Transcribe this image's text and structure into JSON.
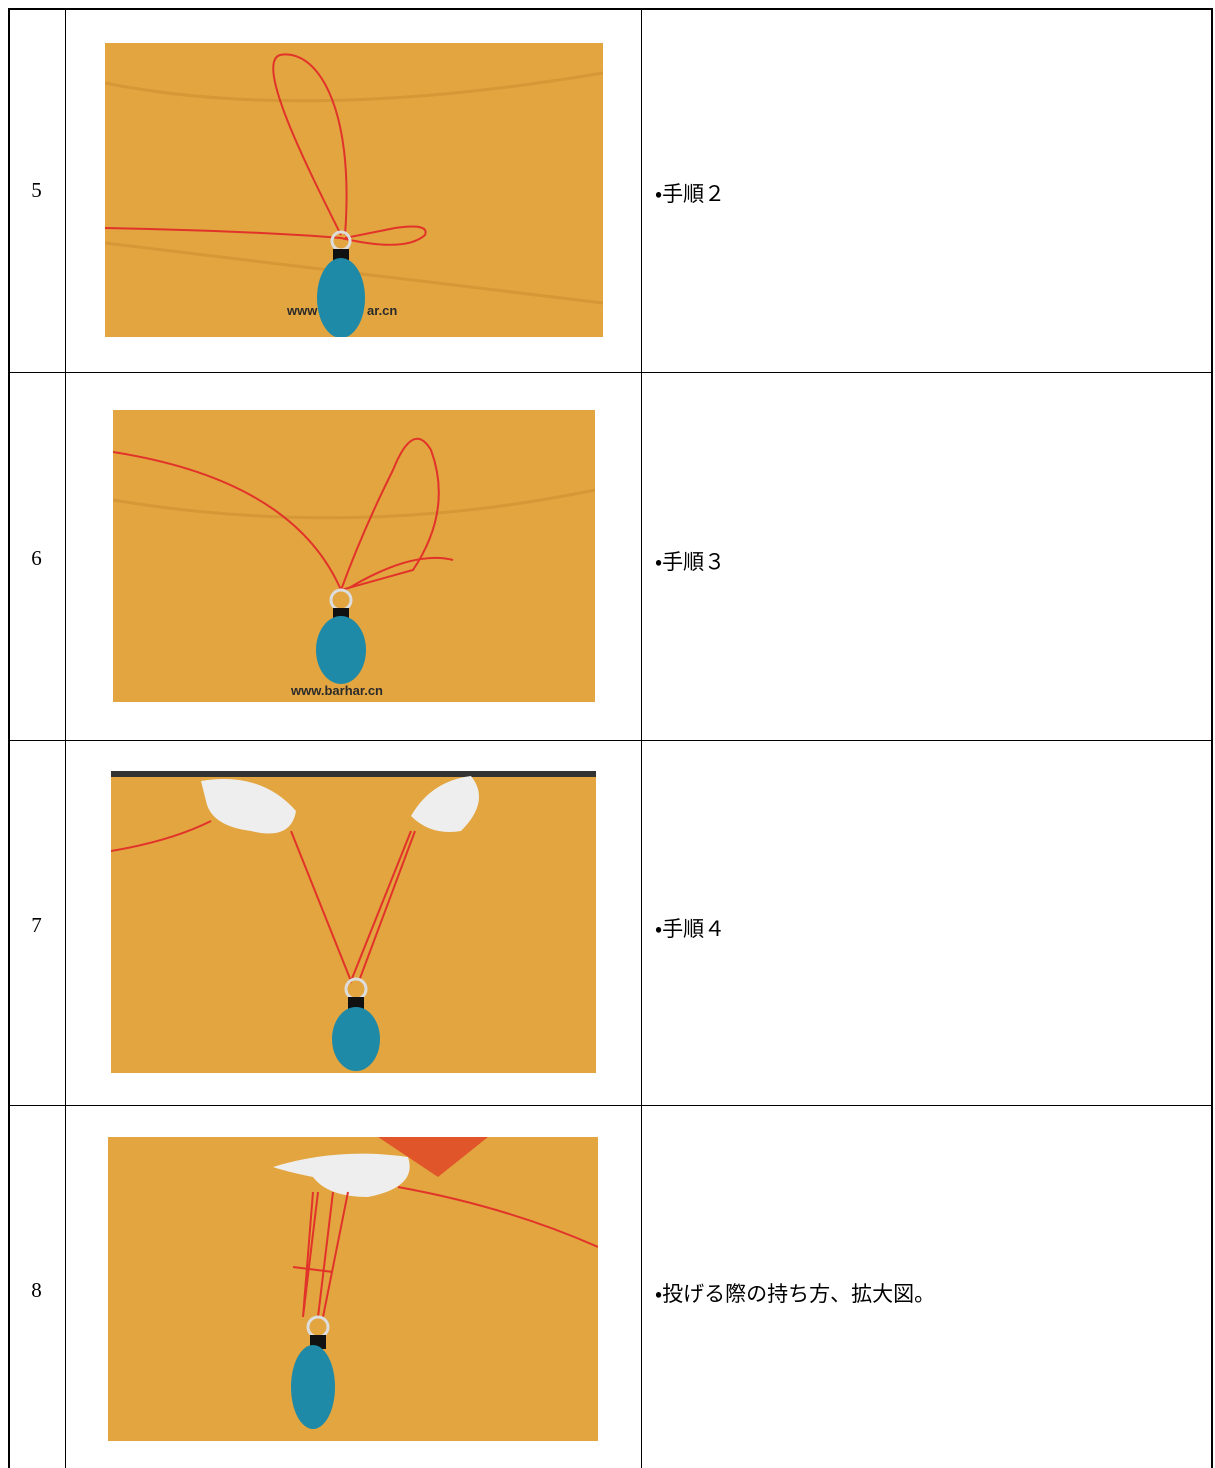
{
  "table": {
    "rows": [
      {
        "number": "5",
        "description": "・手順２",
        "image": {
          "watermark": [
            "www",
            "ar.cn"
          ]
        }
      },
      {
        "number": "6",
        "description": "・手順３",
        "image": {
          "watermark": [
            "www.barhar.cn"
          ]
        }
      },
      {
        "number": "7",
        "description": "・手順４"
      },
      {
        "number": "8",
        "description": "・投げる際の持ち方、拡大図。"
      }
    ]
  }
}
